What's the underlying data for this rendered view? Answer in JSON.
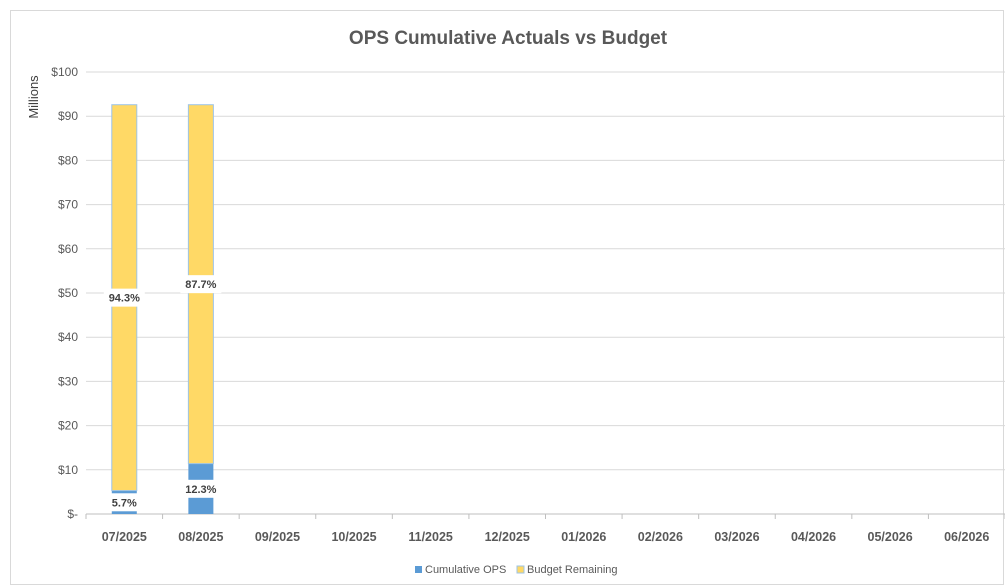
{
  "chart_data": {
    "type": "bar",
    "stacked": true,
    "title": "OPS Cumulative Actuals vs Budget",
    "ylabel": "Millions",
    "ylim": [
      0,
      100
    ],
    "yticks": [
      {
        "value": 0,
        "label": "$-"
      },
      {
        "value": 10,
        "label": "$10"
      },
      {
        "value": 20,
        "label": "$20"
      },
      {
        "value": 30,
        "label": "$30"
      },
      {
        "value": 40,
        "label": "$40"
      },
      {
        "value": 50,
        "label": "$50"
      },
      {
        "value": 60,
        "label": "$60"
      },
      {
        "value": 70,
        "label": "$70"
      },
      {
        "value": 80,
        "label": "$80"
      },
      {
        "value": 90,
        "label": "$90"
      },
      {
        "value": 100,
        "label": "$100"
      }
    ],
    "categories": [
      "07/2025",
      "08/2025",
      "09/2025",
      "10/2025",
      "11/2025",
      "12/2025",
      "01/2026",
      "02/2026",
      "03/2026",
      "04/2026",
      "05/2026",
      "06/2026"
    ],
    "series": [
      {
        "name": "Cumulative OPS",
        "color": "#5b9bd5",
        "values": [
          5.3,
          11.4,
          null,
          null,
          null,
          null,
          null,
          null,
          null,
          null,
          null,
          null
        ],
        "labels": [
          "5.7%",
          "12.3%",
          "",
          "",
          "",
          "",
          "",
          "",
          "",
          "",
          "",
          ""
        ]
      },
      {
        "name": "Budget Remaining",
        "color": "#ffd966",
        "values": [
          87.3,
          81.2,
          null,
          null,
          null,
          null,
          null,
          null,
          null,
          null,
          null,
          null
        ],
        "labels": [
          "94.3%",
          "87.7%",
          "",
          "",
          "",
          "",
          "",
          "",
          "",
          "",
          "",
          ""
        ]
      }
    ],
    "grid": true,
    "legend": "bottom"
  }
}
